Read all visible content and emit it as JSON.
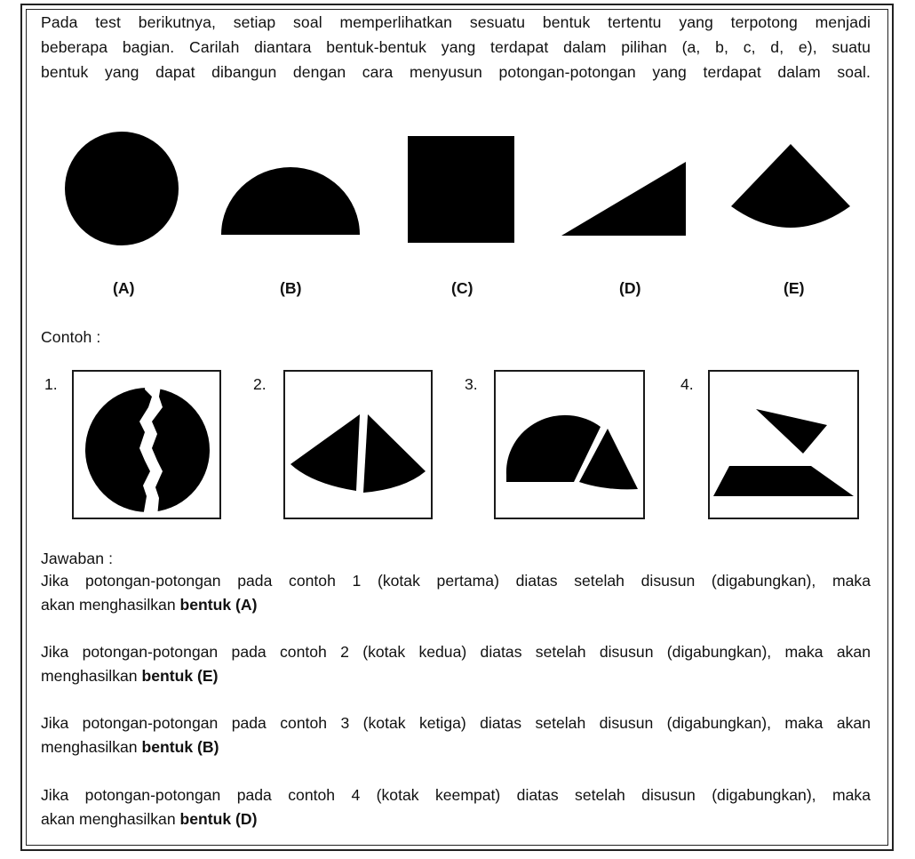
{
  "intro": {
    "line1": "Pada test berikutnya, setiap soal memperlihatkan sesuatu bentuk tertentu yang terpotong menjadi",
    "line2": "beberapa bagian. Carilah diantara bentuk-bentuk yang terdapat dalam pilihan (a, b, c, d, e), suatu",
    "line3": "bentuk yang dapat dibangun dengan cara menyusun potongan-potongan yang terdapat dalam soal."
  },
  "options": [
    {
      "label": "(A)",
      "shape": "circle-icon"
    },
    {
      "label": "(B)",
      "shape": "semicircle-icon"
    },
    {
      "label": "(C)",
      "shape": "square-icon"
    },
    {
      "label": "(D)",
      "shape": "right-triangle-icon"
    },
    {
      "label": "(E)",
      "shape": "circular-sector-icon"
    }
  ],
  "example_heading": "Contoh :",
  "examples": [
    {
      "number": "1.",
      "content": "split-circle-icon"
    },
    {
      "number": "2.",
      "content": "split-sector-icon"
    },
    {
      "number": "3.",
      "content": "split-semicircle-icon"
    },
    {
      "number": "4.",
      "content": "split-triangle-icon"
    }
  ],
  "answer_heading": "Jawaban :",
  "answers": [
    {
      "line1": "Jika potongan-potongan pada contoh 1 (kotak pertama) diatas setelah disusun (digabungkan), maka",
      "line2_prefix": "akan menghasilkan ",
      "result": "bentuk (A)"
    },
    {
      "line1": "Jika potongan-potongan pada contoh 2 (kotak kedua) diatas setelah disusun (digabungkan), maka akan",
      "line2_prefix": "menghasilkan ",
      "result": "bentuk (E)"
    },
    {
      "line1": "Jika potongan-potongan pada contoh 3 (kotak ketiga) diatas setelah disusun (digabungkan), maka akan",
      "line2_prefix": "menghasilkan ",
      "result": "bentuk (B)"
    },
    {
      "line1": "Jika potongan-potongan pada contoh 4 (kotak keempat) diatas setelah disusun (digabungkan), maka",
      "line2_prefix": "akan menghasilkan ",
      "result": "bentuk (D)"
    }
  ]
}
